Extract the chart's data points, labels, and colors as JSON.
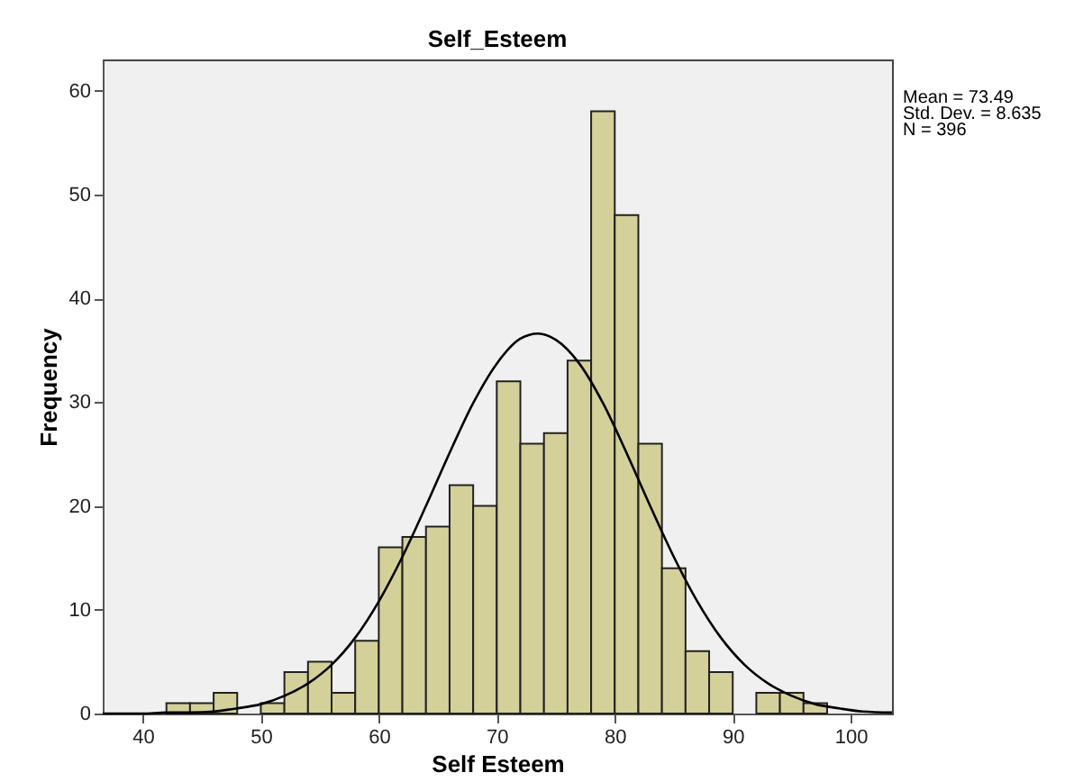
{
  "chart_data": {
    "type": "histogram",
    "title": "Self_Esteem",
    "xlabel": "Self Esteem",
    "ylabel": "Frequency",
    "annotations": [
      "Mean = 73.49",
      "Std. Dev. = 8.635",
      "N = 396"
    ],
    "xlim": [
      36.6,
      103.5
    ],
    "xticks": [
      40,
      50,
      60,
      70,
      80,
      90,
      100
    ],
    "ylim": [
      0,
      63
    ],
    "yticks": [
      0,
      10,
      20,
      30,
      40,
      50,
      60
    ],
    "series": [
      {
        "color": "#d4d099",
        "bins": [
          42,
          44,
          46,
          48,
          50,
          52,
          54,
          56,
          58,
          60,
          62,
          64,
          66,
          68,
          70,
          72,
          74,
          76,
          78,
          80,
          82,
          84,
          86,
          88,
          90,
          92,
          94,
          96,
          98
        ],
        "values": [
          1,
          1,
          2,
          0,
          1,
          4,
          5,
          2,
          7,
          16,
          17,
          18,
          22,
          20,
          32,
          26,
          27,
          34,
          58,
          48,
          26,
          14,
          6,
          4,
          0,
          2,
          2,
          1
        ]
      },
      {
        "type": "line",
        "color": "#000000",
        "x": [
          36.6,
          40,
          42,
          44,
          46,
          48,
          50,
          52,
          54,
          56,
          58,
          60,
          62,
          64,
          66,
          68,
          70,
          72,
          73.5,
          75,
          77,
          79,
          81,
          83,
          85,
          87,
          89,
          91,
          93,
          95,
          97,
          99,
          101,
          103.5
        ],
        "values": [
          0,
          0,
          0.1,
          0.1,
          0.2,
          0.5,
          0.9,
          1.7,
          2.9,
          4.7,
          7.3,
          10.8,
          15.1,
          20,
          25.1,
          29.9,
          33.7,
          36.1,
          36.6,
          36,
          33.7,
          29.9,
          25.1,
          20,
          15.1,
          10.8,
          7.3,
          4.7,
          2.9,
          1.7,
          0.9,
          0.5,
          0.2,
          0.1
        ]
      }
    ]
  }
}
